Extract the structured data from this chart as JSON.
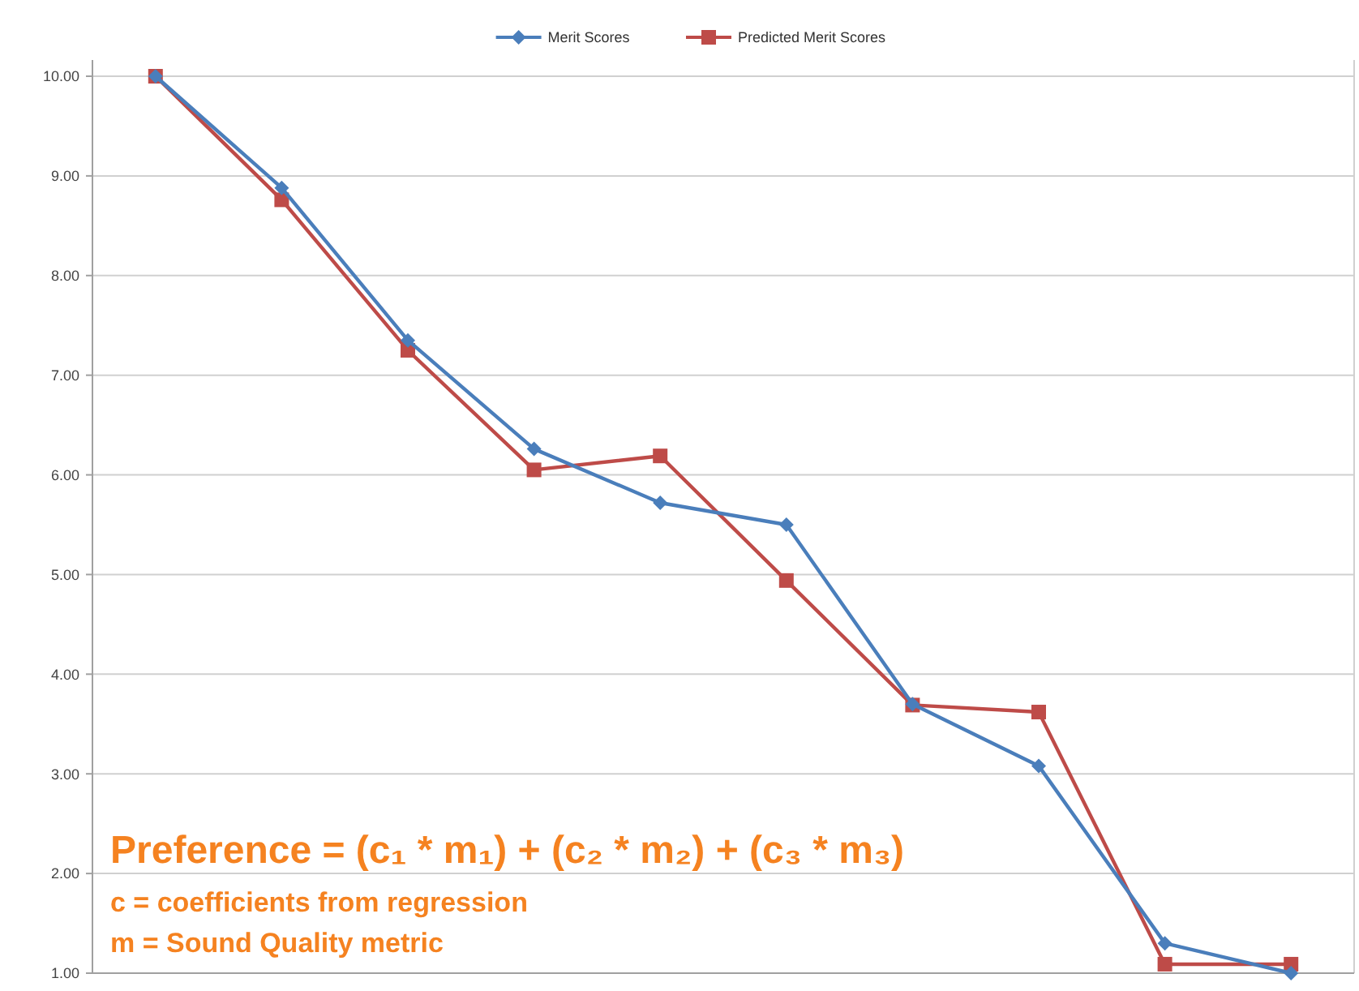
{
  "chart_data": {
    "type": "line",
    "categories": [
      null,
      null,
      null,
      null,
      null,
      null,
      null,
      null,
      null,
      null
    ],
    "series": [
      {
        "name": "Merit Scores",
        "color": "#4a7ebb",
        "marker": "diamond",
        "values": [
          10.0,
          8.88,
          7.35,
          6.26,
          5.72,
          5.5,
          3.7,
          3.08,
          1.3,
          1.0
        ]
      },
      {
        "name": "Predicted Merit Scores",
        "color": "#be4b48",
        "marker": "square",
        "values": [
          10.0,
          8.76,
          7.25,
          6.05,
          6.19,
          4.94,
          3.69,
          3.62,
          1.09,
          1.09
        ]
      }
    ],
    "ylim": [
      1,
      10
    ],
    "yticks": [
      {
        "value": 1,
        "label": "1.00"
      },
      {
        "value": 2,
        "label": "2.00"
      },
      {
        "value": 3,
        "label": "3.00"
      },
      {
        "value": 4,
        "label": "4.00"
      },
      {
        "value": 5,
        "label": "5.00"
      },
      {
        "value": 6,
        "label": "6.00"
      },
      {
        "value": 7,
        "label": "7.00"
      },
      {
        "value": 8,
        "label": "8.00"
      },
      {
        "value": 9,
        "label": "9.00"
      },
      {
        "value": 10,
        "label": "10.00"
      }
    ],
    "grid": "y",
    "legend": "top",
    "annotations": [
      "Preference = (c₁ * m₁) + (c₂ * m₂) + (c₃ * m₃)",
      "c = coefficients from regression",
      "m = Sound Quality metric"
    ]
  }
}
